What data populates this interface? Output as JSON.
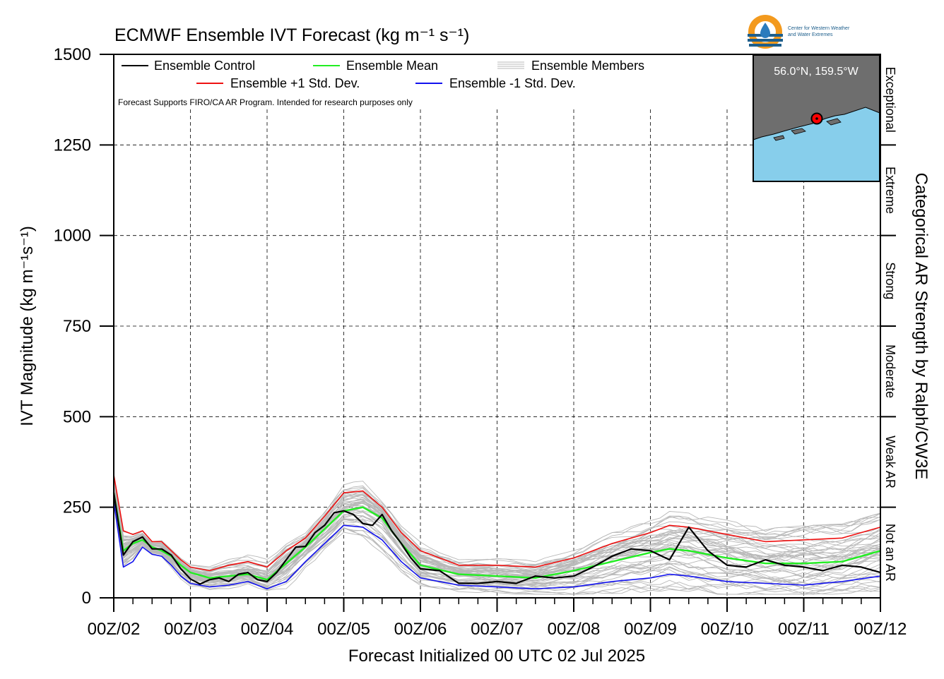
{
  "chart_data": {
    "type": "line",
    "title": "ECMWF Ensemble IVT Forecast (kg m⁻¹ s⁻¹)",
    "xlabel": "Forecast Initialized 00 UTC 02 Jul 2025",
    "ylabel": "IVT Magnitude (kg m⁻¹s⁻¹)",
    "right_label": "Categorical AR Strength by Ralph/CW3E",
    "ylim": [
      0,
      1500
    ],
    "xlim_days": [
      2,
      12
    ],
    "yticks": [
      "0",
      "250",
      "500",
      "750",
      "1000",
      "1250",
      "1500"
    ],
    "xticks": [
      "00Z/02",
      "00Z/03",
      "00Z/04",
      "00Z/05",
      "00Z/06",
      "00Z/07",
      "00Z/08",
      "00Z/09",
      "00Z/10",
      "00Z/11",
      "00Z/12"
    ],
    "grid": true,
    "legend_placement": "top-left",
    "legend": {
      "control": "Ensemble Control",
      "mean": "Ensemble Mean",
      "members": "Ensemble Members",
      "plus_std": "Ensemble +1 Std. Dev.",
      "minus_std": "Ensemble -1 Std. Dev."
    },
    "note": "Forecast Supports FIRO/CA AR Program. Intended for research purposes only",
    "categories_ar": [
      {
        "label": "Not an AR",
        "from": 0,
        "to": 250
      },
      {
        "label": "Weak AR",
        "from": 250,
        "to": 500
      },
      {
        "label": "Moderate",
        "from": 500,
        "to": 750
      },
      {
        "label": "Strong",
        "from": 750,
        "to": 1000
      },
      {
        "label": "Extreme",
        "from": 1000,
        "to": 1250
      },
      {
        "label": "Exceptional",
        "from": 1250,
        "to": 1500
      }
    ],
    "inset": {
      "location_label": "56.0°N, 159.5°W",
      "land_color": "#6e6e6e",
      "water_color": "#87ceeb",
      "marker_color": "#ff0000"
    },
    "logo_text": [
      "Center for Western Weather",
      "and Water Extremes"
    ],
    "colors": {
      "control": "#000000",
      "mean": "#22ee22",
      "plus_std": "#ee1111",
      "minus_std": "#1111ee",
      "members": "#b8b8b8"
    },
    "series": [
      {
        "name": "Ensemble Control",
        "x": [
          2,
          2.125,
          2.25,
          2.375,
          2.5,
          2.625,
          2.75,
          2.875,
          3,
          3.125,
          3.25,
          3.375,
          3.5,
          3.625,
          3.75,
          3.875,
          4,
          4.125,
          4.25,
          4.375,
          4.5,
          4.625,
          4.75,
          4.875,
          5,
          5.125,
          5.25,
          5.375,
          5.5,
          5.625,
          5.75,
          5.875,
          6,
          6.25,
          6.5,
          6.75,
          7,
          7.25,
          7.5,
          7.75,
          8,
          8.25,
          8.5,
          8.75,
          9,
          9.25,
          9.5,
          9.75,
          10,
          10.25,
          10.5,
          10.75,
          11,
          11.25,
          11.5,
          11.75,
          12
        ],
        "values": [
          290,
          118,
          155,
          168,
          135,
          135,
          118,
          80,
          52,
          38,
          50,
          55,
          45,
          65,
          70,
          50,
          45,
          70,
          105,
          140,
          142,
          180,
          200,
          235,
          240,
          230,
          205,
          200,
          230,
          185,
          150,
          110,
          80,
          75,
          40,
          40,
          45,
          40,
          60,
          55,
          60,
          85,
          115,
          135,
          130,
          105,
          195,
          130,
          90,
          85,
          105,
          90,
          85,
          75,
          90,
          85,
          70
        ]
      },
      {
        "name": "Ensemble Mean",
        "x": [
          2,
          2.125,
          2.25,
          2.375,
          2.5,
          2.625,
          2.75,
          2.875,
          3,
          3.25,
          3.5,
          3.75,
          4,
          4.25,
          4.5,
          4.75,
          5,
          5.25,
          5.5,
          5.75,
          6,
          6.5,
          7,
          7.5,
          8,
          8.5,
          9,
          9.25,
          9.5,
          10,
          10.5,
          11,
          11.5,
          12
        ],
        "values": [
          290,
          130,
          150,
          160,
          140,
          130,
          115,
          90,
          70,
          55,
          60,
          65,
          50,
          95,
          140,
          190,
          240,
          250,
          220,
          150,
          90,
          65,
          60,
          55,
          75,
          100,
          125,
          135,
          130,
          110,
          95,
          95,
          100,
          130
        ]
      },
      {
        "name": "Ensemble +1 Std. Dev.",
        "x": [
          2,
          2.125,
          2.25,
          2.375,
          2.5,
          2.625,
          2.75,
          2.875,
          3,
          3.25,
          3.5,
          3.75,
          4,
          4.25,
          4.5,
          4.75,
          5,
          5.25,
          5.5,
          5.75,
          6,
          6.5,
          7,
          7.5,
          8,
          8.5,
          9,
          9.25,
          9.5,
          10,
          10.5,
          11,
          11.5,
          12
        ],
        "values": [
          340,
          185,
          175,
          185,
          155,
          155,
          130,
          105,
          85,
          75,
          90,
          100,
          85,
          130,
          165,
          225,
          290,
          295,
          250,
          180,
          130,
          90,
          90,
          85,
          110,
          150,
          180,
          200,
          195,
          175,
          155,
          160,
          165,
          195
        ]
      },
      {
        "name": "Ensemble -1 Std. Dev.",
        "x": [
          2,
          2.125,
          2.25,
          2.375,
          2.5,
          2.625,
          2.75,
          2.875,
          3,
          3.25,
          3.5,
          3.75,
          4,
          4.25,
          4.5,
          4.75,
          5,
          5.25,
          5.5,
          5.75,
          6,
          6.5,
          7,
          7.5,
          8,
          8.5,
          9,
          9.25,
          9.5,
          10,
          10.5,
          11,
          11.5,
          12
        ],
        "values": [
          265,
          85,
          100,
          140,
          120,
          115,
          90,
          60,
          40,
          30,
          35,
          45,
          25,
          45,
          100,
          150,
          200,
          195,
          160,
          100,
          55,
          35,
          30,
          25,
          30,
          45,
          55,
          65,
          60,
          45,
          40,
          35,
          45,
          60
        ]
      }
    ]
  }
}
